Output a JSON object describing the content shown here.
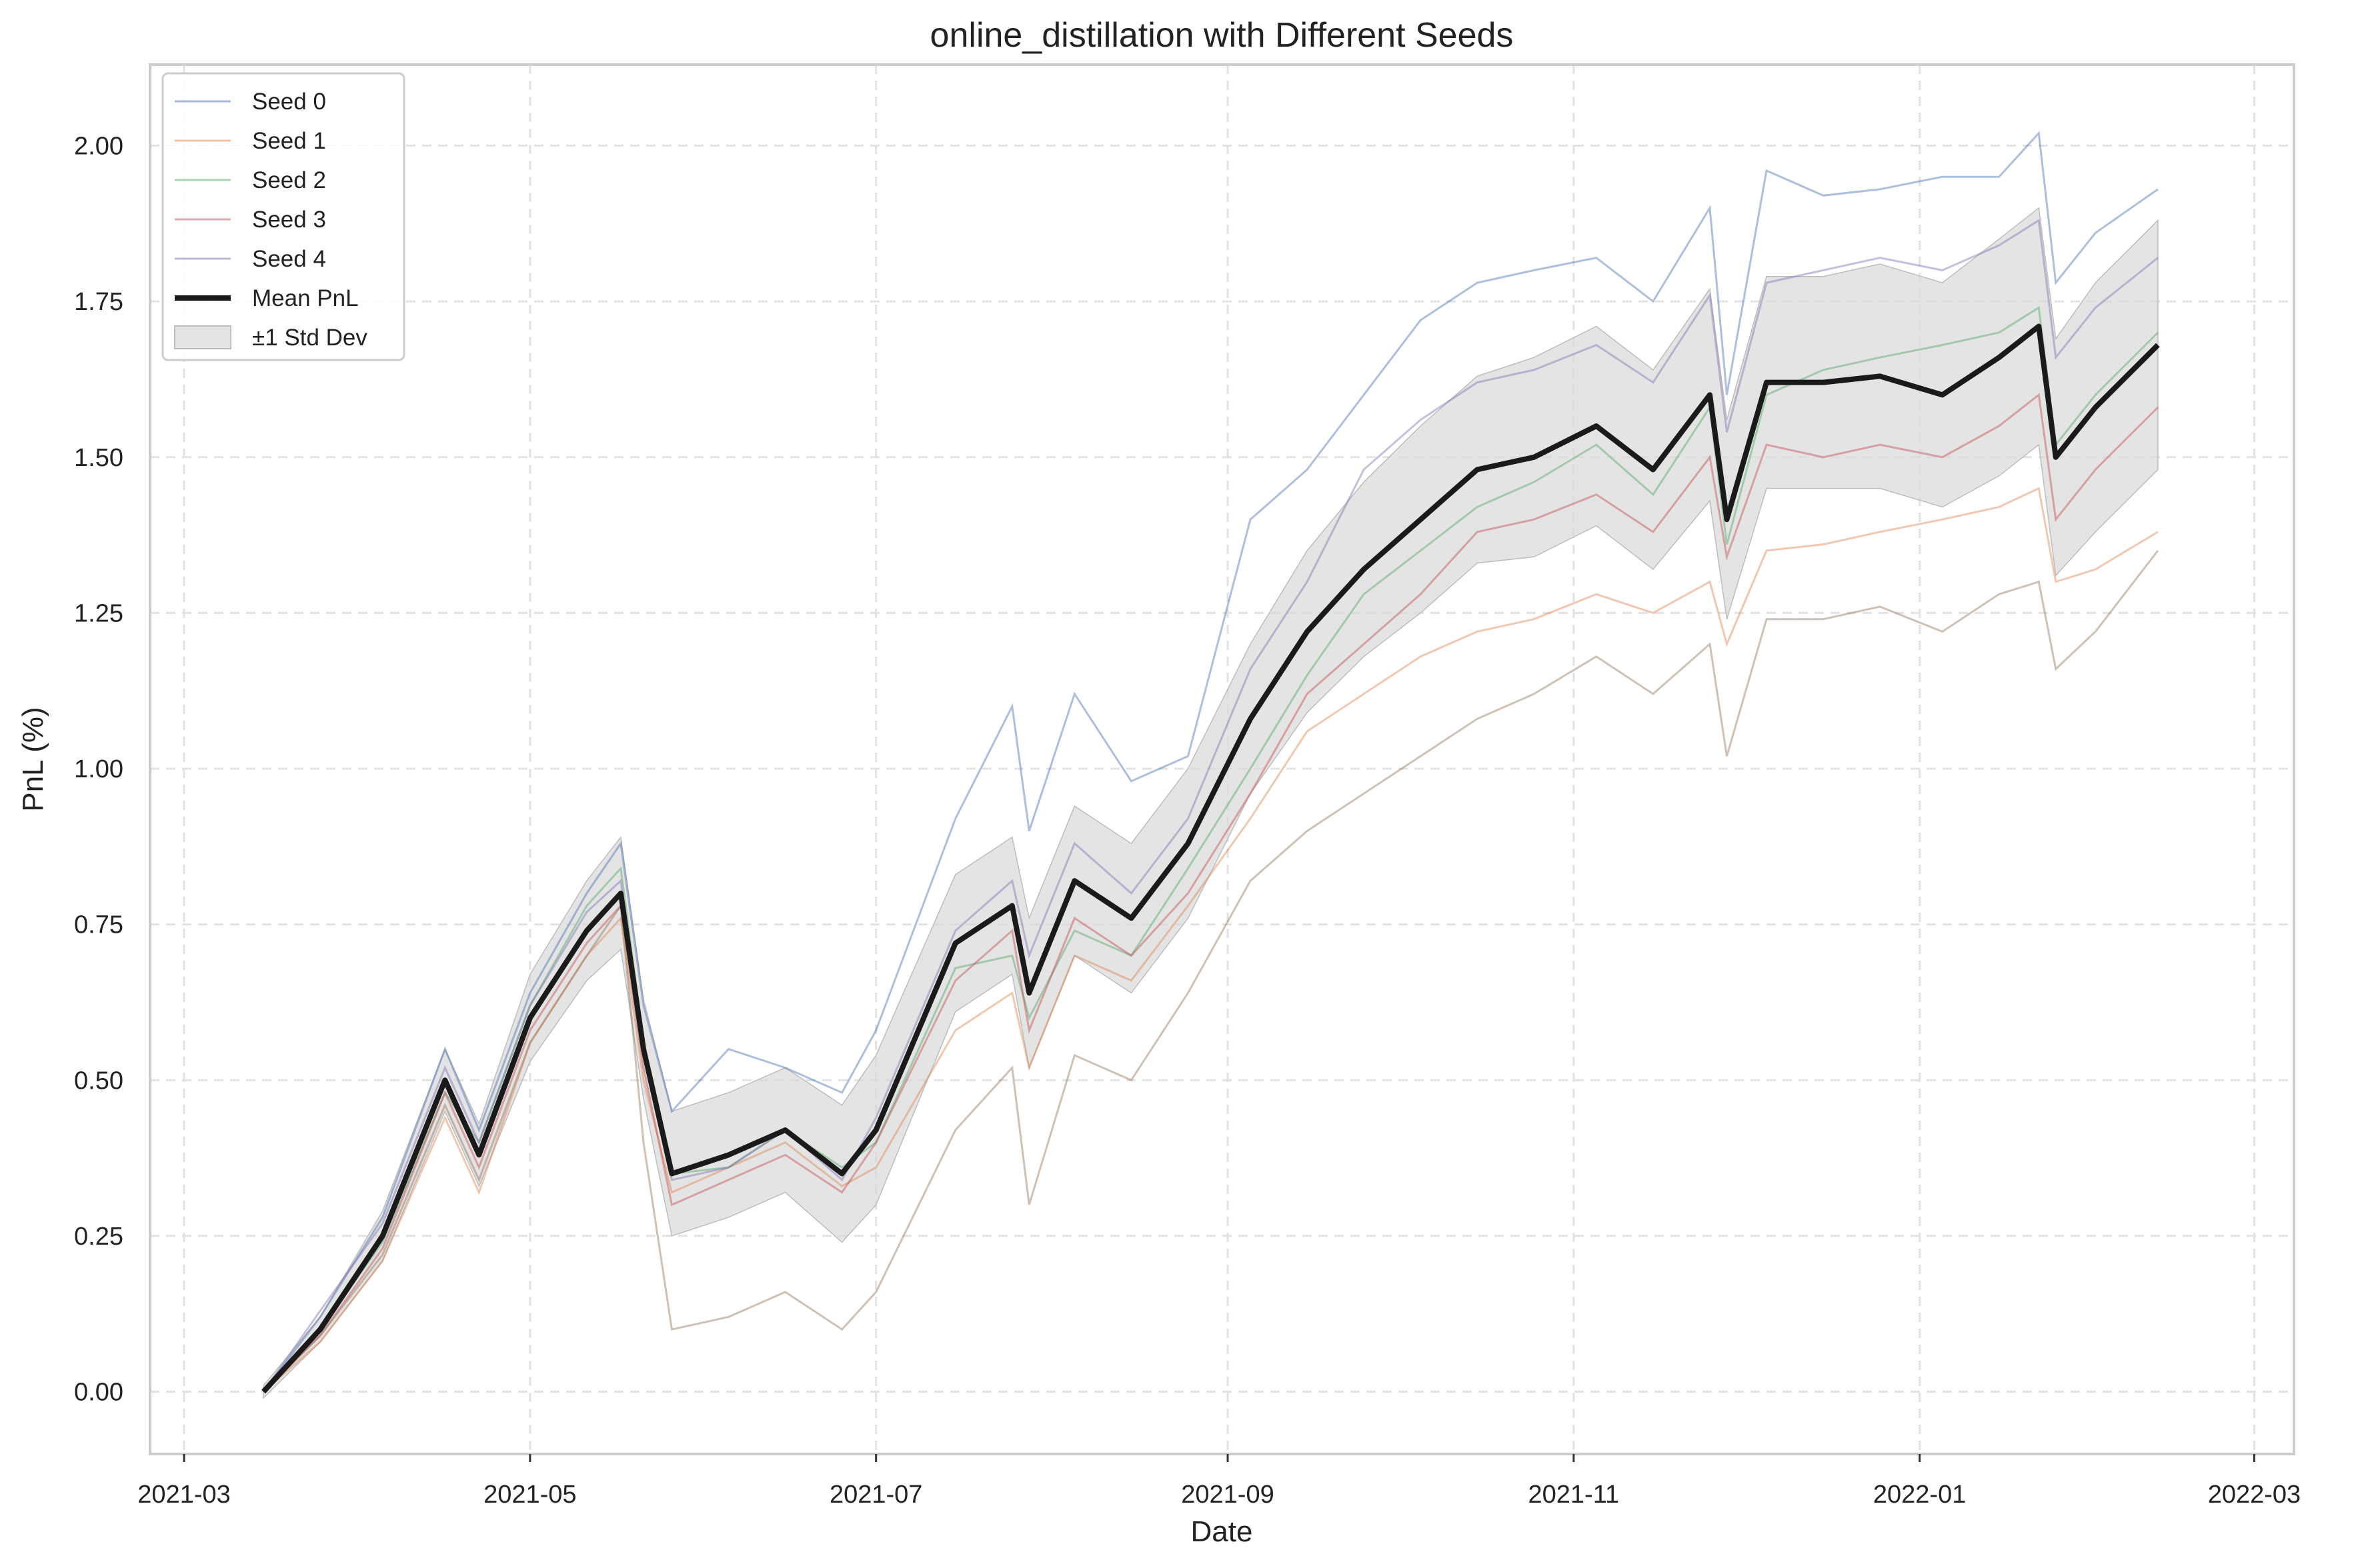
{
  "chart_data": {
    "type": "line",
    "title": "online_distillation with Different Seeds",
    "xlabel": "Date",
    "ylabel": "PnL (%)",
    "x_range": [
      "2021-02-23",
      "2022-03-08"
    ],
    "x_ticks": [
      "2021-03",
      "2021-05",
      "2021-07",
      "2021-09",
      "2021-11",
      "2022-01",
      "2022-03"
    ],
    "ylim": [
      -0.1,
      2.13
    ],
    "y_ticks": [
      "0.00",
      "0.25",
      "0.50",
      "0.75",
      "1.00",
      "1.25",
      "1.50",
      "1.75",
      "2.00"
    ],
    "grid": true,
    "legend_position": "top-left",
    "colors": {
      "seed_0": "#4c72b0",
      "seed_1": "#dd8452",
      "seed_2": "#55a868",
      "seed_3": "#c44e52",
      "seed_4": "#8172b3",
      "seed_5": "#937860",
      "mean": "#1a1a1a",
      "band": "#d9d9d9"
    },
    "legend": [
      {
        "label": "Seed 0",
        "style": "line",
        "key": "seed_0"
      },
      {
        "label": "Seed 1",
        "style": "line",
        "key": "seed_1"
      },
      {
        "label": "Seed 2",
        "style": "line",
        "key": "seed_2"
      },
      {
        "label": "Seed 3",
        "style": "line",
        "key": "seed_3"
      },
      {
        "label": "Seed 4",
        "style": "line",
        "key": "seed_4"
      },
      {
        "label": "Mean PnL",
        "style": "thick",
        "key": "mean"
      },
      {
        "label": "±1 Std Dev",
        "style": "patch",
        "key": "band"
      }
    ],
    "dates": [
      "2021-03-15",
      "2021-03-25",
      "2021-04-05",
      "2021-04-16",
      "2021-04-22",
      "2021-05-01",
      "2021-05-11",
      "2021-05-17",
      "2021-05-21",
      "2021-05-26",
      "2021-06-05",
      "2021-06-15",
      "2021-06-25",
      "2021-07-01",
      "2021-07-15",
      "2021-07-25",
      "2021-07-28",
      "2021-08-05",
      "2021-08-15",
      "2021-08-25",
      "2021-09-05",
      "2021-09-15",
      "2021-09-25",
      "2021-10-05",
      "2021-10-15",
      "2021-10-25",
      "2021-11-05",
      "2021-11-15",
      "2021-11-25",
      "2021-11-28",
      "2021-12-05",
      "2021-12-15",
      "2021-12-25",
      "2022-01-05",
      "2022-01-15",
      "2022-01-22",
      "2022-01-25",
      "2022-02-01",
      "2022-02-12"
    ],
    "mean": [
      0.0,
      0.1,
      0.25,
      0.5,
      0.38,
      0.6,
      0.74,
      0.8,
      0.55,
      0.35,
      0.38,
      0.42,
      0.35,
      0.42,
      0.72,
      0.78,
      0.64,
      0.82,
      0.76,
      0.88,
      1.08,
      1.22,
      1.32,
      1.4,
      1.48,
      1.5,
      1.55,
      1.48,
      1.6,
      1.4,
      1.62,
      1.62,
      1.63,
      1.6,
      1.66,
      1.71,
      1.5,
      1.58,
      1.68
    ],
    "std": [
      0.01,
      0.02,
      0.04,
      0.05,
      0.05,
      0.07,
      0.08,
      0.09,
      0.08,
      0.1,
      0.1,
      0.1,
      0.11,
      0.12,
      0.11,
      0.11,
      0.12,
      0.12,
      0.12,
      0.12,
      0.12,
      0.13,
      0.14,
      0.15,
      0.15,
      0.16,
      0.16,
      0.16,
      0.17,
      0.16,
      0.17,
      0.17,
      0.18,
      0.18,
      0.19,
      0.19,
      0.19,
      0.2,
      0.2
    ],
    "series": [
      {
        "key": "seed_0",
        "values": [
          0.0,
          0.12,
          0.28,
          0.55,
          0.42,
          0.64,
          0.8,
          0.88,
          0.62,
          0.45,
          0.55,
          0.52,
          0.48,
          0.58,
          0.92,
          1.1,
          0.9,
          1.12,
          0.98,
          1.02,
          1.4,
          1.48,
          1.6,
          1.72,
          1.78,
          1.8,
          1.82,
          1.75,
          1.9,
          1.6,
          1.96,
          1.92,
          1.93,
          1.95,
          1.95,
          2.02,
          1.78,
          1.86,
          1.93
        ]
      },
      {
        "key": "seed_1",
        "values": [
          0.0,
          0.08,
          0.21,
          0.44,
          0.32,
          0.56,
          0.7,
          0.76,
          0.5,
          0.32,
          0.36,
          0.4,
          0.33,
          0.36,
          0.58,
          0.64,
          0.52,
          0.7,
          0.66,
          0.78,
          0.92,
          1.06,
          1.12,
          1.18,
          1.22,
          1.24,
          1.28,
          1.25,
          1.3,
          1.2,
          1.35,
          1.36,
          1.38,
          1.4,
          1.42,
          1.45,
          1.3,
          1.32,
          1.38
        ]
      },
      {
        "key": "seed_2",
        "values": [
          0.0,
          0.1,
          0.24,
          0.48,
          0.4,
          0.62,
          0.78,
          0.84,
          0.56,
          0.35,
          0.36,
          0.42,
          0.36,
          0.4,
          0.68,
          0.7,
          0.6,
          0.74,
          0.7,
          0.84,
          1.0,
          1.15,
          1.28,
          1.35,
          1.42,
          1.46,
          1.52,
          1.44,
          1.58,
          1.36,
          1.6,
          1.64,
          1.66,
          1.68,
          1.7,
          1.74,
          1.52,
          1.6,
          1.7
        ]
      },
      {
        "key": "seed_3",
        "values": [
          0.0,
          0.09,
          0.23,
          0.48,
          0.36,
          0.58,
          0.72,
          0.78,
          0.52,
          0.3,
          0.34,
          0.38,
          0.32,
          0.4,
          0.66,
          0.74,
          0.58,
          0.76,
          0.7,
          0.8,
          0.96,
          1.12,
          1.2,
          1.28,
          1.38,
          1.4,
          1.44,
          1.38,
          1.5,
          1.34,
          1.52,
          1.5,
          1.52,
          1.5,
          1.55,
          1.6,
          1.4,
          1.48,
          1.58
        ]
      },
      {
        "key": "seed_4",
        "values": [
          0.0,
          0.13,
          0.27,
          0.52,
          0.4,
          0.62,
          0.77,
          0.82,
          0.56,
          0.34,
          0.36,
          0.42,
          0.34,
          0.44,
          0.74,
          0.82,
          0.7,
          0.88,
          0.8,
          0.92,
          1.16,
          1.3,
          1.48,
          1.56,
          1.62,
          1.64,
          1.68,
          1.62,
          1.76,
          1.54,
          1.78,
          1.8,
          1.82,
          1.8,
          1.84,
          1.88,
          1.66,
          1.74,
          1.82
        ]
      },
      {
        "key": "seed_5",
        "values": [
          0.0,
          0.09,
          0.22,
          0.46,
          0.34,
          0.56,
          0.7,
          0.78,
          0.4,
          0.1,
          0.12,
          0.16,
          0.1,
          0.16,
          0.42,
          0.52,
          0.3,
          0.54,
          0.5,
          0.64,
          0.82,
          0.9,
          0.96,
          1.02,
          1.08,
          1.12,
          1.18,
          1.12,
          1.2,
          1.02,
          1.24,
          1.24,
          1.26,
          1.22,
          1.28,
          1.3,
          1.16,
          1.22,
          1.35
        ]
      }
    ]
  }
}
